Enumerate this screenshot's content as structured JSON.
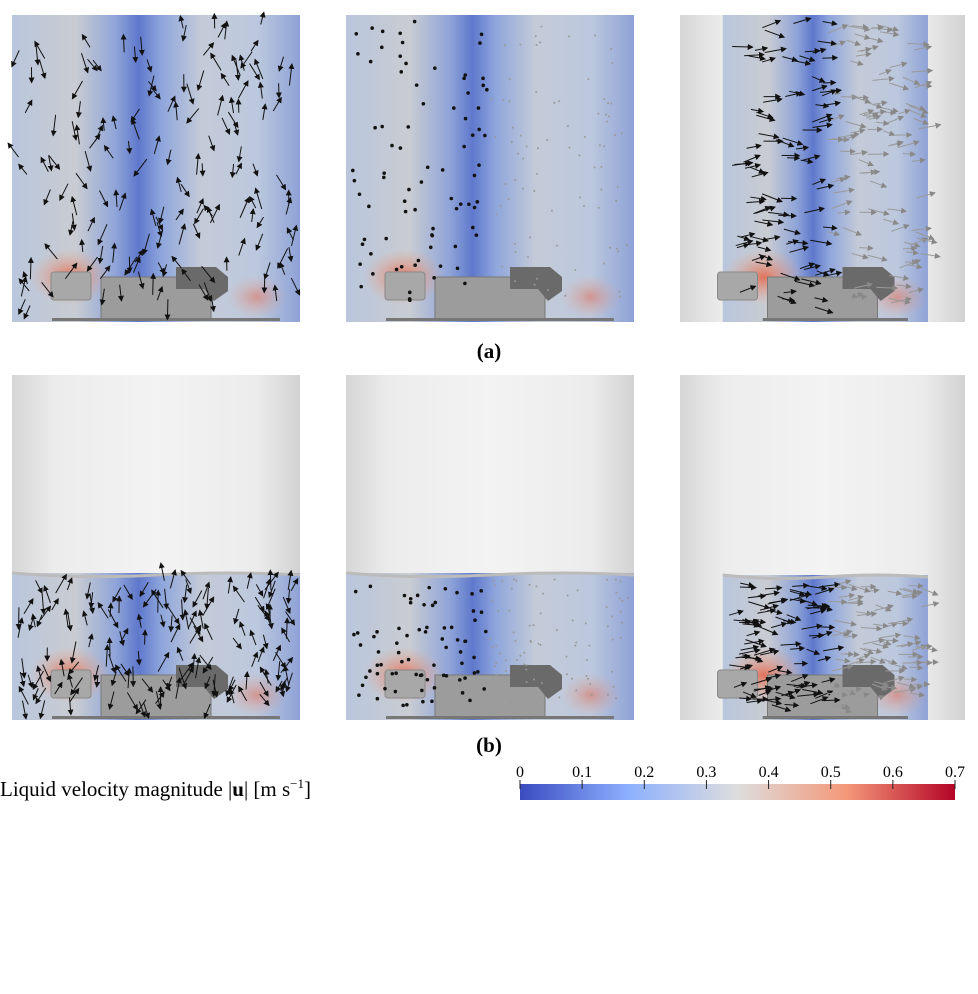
{
  "panel_labels": [
    "(a)",
    "(b)"
  ],
  "colorbar": {
    "label_parts": [
      "Liquid velocity magnitude",
      "|",
      "u",
      "|",
      "[m s",
      "−1",
      "]"
    ],
    "lim": [
      0,
      0.7
    ],
    "ticks": [
      0,
      0.1,
      0.2,
      0.3,
      0.4,
      0.5,
      0.6,
      0.7
    ]
  }
}
